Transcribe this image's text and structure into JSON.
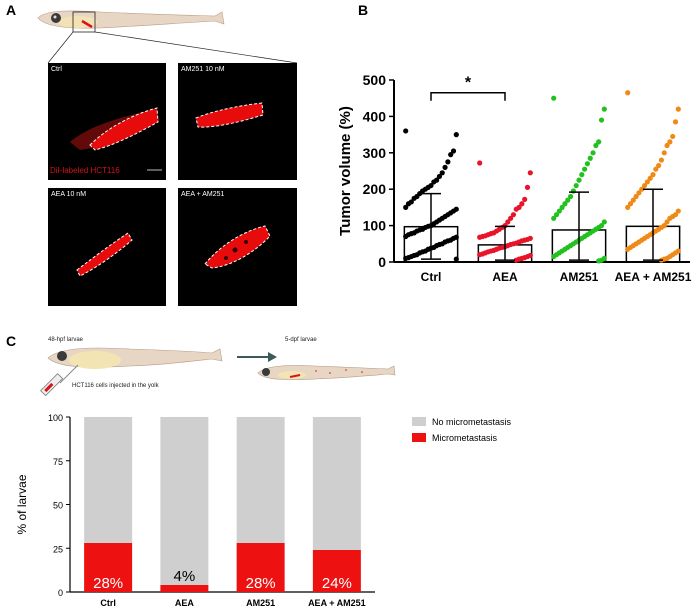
{
  "panels": {
    "a": "A",
    "b": "B",
    "c": "C"
  },
  "panel_a": {
    "images": [
      {
        "label": "Ctrl"
      },
      {
        "label": "AM251 10 nM"
      },
      {
        "label": "AEA 10 nM"
      },
      {
        "label": "AEA + AM251"
      }
    ],
    "dil_label": "DiI-labeled HCT116"
  },
  "panel_c_schematic": {
    "larva_48": "48-hpf larvae",
    "larva_5": "5-dpf larvae",
    "injection": "HCT116 cells injected in the yolk"
  },
  "colors": {
    "ctrl": "#000000",
    "aea": "#e8142a",
    "am251": "#21c21e",
    "combo": "#f08a16",
    "micromet": "#ee1111",
    "no_micromet": "#cfcfcf"
  },
  "chart_data": [
    {
      "type": "scatter",
      "ylabel": "Tumor volume (%)",
      "ylim": [
        0,
        500
      ],
      "yticks": [
        0,
        100,
        200,
        300,
        400,
        500
      ],
      "categories": [
        "Ctrl",
        "AEA",
        "AM251",
        "AEA + AM251"
      ],
      "means": [
        97,
        47,
        88,
        98
      ],
      "sd_upper": [
        188,
        98,
        192,
        200
      ],
      "sd_lower": [
        8,
        5,
        5,
        5
      ],
      "significance": {
        "between": [
          "Ctrl",
          "AEA"
        ],
        "label": "*"
      },
      "series": [
        {
          "values": [
            360,
            350,
            305,
            295,
            275,
            260,
            245,
            235,
            225,
            220,
            210,
            205,
            200,
            195,
            188,
            180,
            175,
            165,
            160,
            150,
            145,
            140,
            135,
            130,
            125,
            120,
            115,
            110,
            105,
            100,
            98,
            95,
            90,
            88,
            85,
            80,
            78,
            75,
            70,
            68,
            65,
            60,
            58,
            55,
            50,
            48,
            45,
            40,
            38,
            35,
            30,
            28,
            25,
            20,
            18,
            15,
            12,
            10,
            8
          ]
        },
        {
          "values": [
            272,
            245,
            205,
            172,
            160,
            150,
            145,
            130,
            120,
            110,
            100,
            95,
            90,
            85,
            80,
            78,
            75,
            72,
            70,
            68,
            65,
            62,
            60,
            58,
            55,
            52,
            50,
            48,
            45,
            42,
            40,
            38,
            35,
            32,
            30,
            28,
            25,
            22,
            20,
            18,
            15,
            12,
            10,
            8,
            5
          ]
        },
        {
          "values": [
            450,
            420,
            390,
            330,
            320,
            300,
            285,
            270,
            255,
            240,
            225,
            210,
            195,
            180,
            170,
            160,
            150,
            140,
            130,
            120,
            110,
            100,
            95,
            90,
            85,
            80,
            75,
            70,
            65,
            60,
            55,
            50,
            45,
            40,
            35,
            30,
            25,
            20,
            15,
            10,
            5,
            3
          ]
        },
        {
          "values": [
            465,
            420,
            385,
            345,
            330,
            320,
            300,
            280,
            265,
            255,
            240,
            230,
            220,
            210,
            200,
            190,
            180,
            170,
            160,
            150,
            140,
            130,
            125,
            120,
            110,
            100,
            95,
            90,
            85,
            80,
            75,
            70,
            65,
            60,
            55,
            50,
            45,
            40,
            35,
            30,
            25,
            20,
            15,
            10,
            8,
            5
          ]
        }
      ]
    },
    {
      "type": "bar",
      "ylabel": "% of larvae",
      "ylim": [
        0,
        100
      ],
      "yticks": [
        0,
        25,
        50,
        75,
        100
      ],
      "categories": [
        "Ctrl",
        "AEA",
        "AM251",
        "AEA + AM251"
      ],
      "series": [
        {
          "name": "Micrometastasis",
          "values": [
            28,
            4,
            28,
            24
          ]
        },
        {
          "name": "No micrometastasis",
          "values": [
            72,
            96,
            72,
            76
          ]
        }
      ],
      "data_labels": [
        "28%",
        "4%",
        "28%",
        "24%"
      ],
      "legend_placement": "top-right"
    }
  ]
}
